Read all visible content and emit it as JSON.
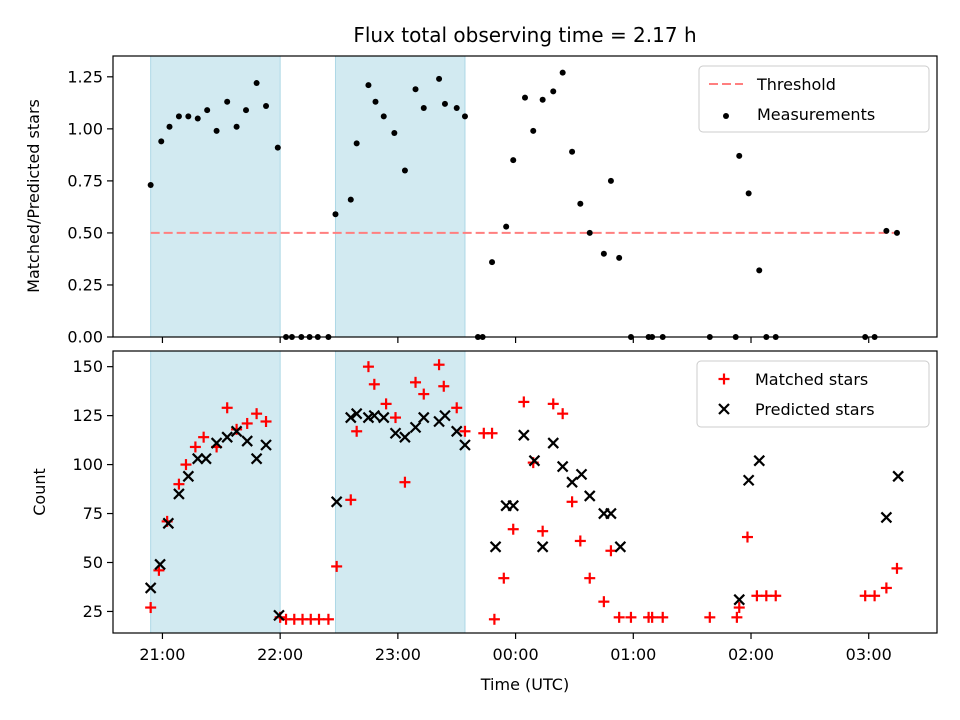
{
  "chart_data": [
    {
      "panel": "top",
      "type": "scatter",
      "title": "Flux total observing time = 2.17 h",
      "xlabel": "",
      "ylabel": "Matched/Predicted stars",
      "ylim": [
        0,
        1.35
      ],
      "yticks": [
        0,
        0.25,
        0.5,
        0.75,
        1.0,
        1.25
      ],
      "ytick_labels": [
        "0.00",
        "0.25",
        "0.50",
        "0.75",
        "1.00",
        "1.25"
      ],
      "xlim_hours": [
        20.58,
        27.58
      ],
      "xticks_hours": [
        21,
        22,
        23,
        24,
        25,
        26,
        27
      ],
      "xtick_labels": [
        "21:00",
        "22:00",
        "23:00",
        "00:00",
        "01:00",
        "02:00",
        "03:00"
      ],
      "shaded_intervals_hours": [
        [
          20.9,
          22.0
        ],
        [
          22.47,
          23.57
        ]
      ],
      "shade_color": "#add8e6",
      "threshold": 0.5,
      "threshold_color": "#ff7f7f",
      "legend": [
        "Threshold",
        "Measurements"
      ],
      "legend_position": "top-right",
      "series": [
        {
          "name": "Measurements",
          "color": "#000000",
          "points": [
            [
              20.9,
              0.73
            ],
            [
              20.99,
              0.94
            ],
            [
              21.06,
              1.01
            ],
            [
              21.14,
              1.06
            ],
            [
              21.22,
              1.06
            ],
            [
              21.3,
              1.05
            ],
            [
              21.38,
              1.09
            ],
            [
              21.46,
              0.99
            ],
            [
              21.55,
              1.13
            ],
            [
              21.63,
              1.01
            ],
            [
              21.71,
              1.09
            ],
            [
              21.8,
              1.22
            ],
            [
              21.88,
              1.11
            ],
            [
              21.98,
              0.91
            ],
            [
              22.05,
              0.0
            ],
            [
              22.1,
              0.0
            ],
            [
              22.18,
              0.0
            ],
            [
              22.25,
              0.0
            ],
            [
              22.32,
              0.0
            ],
            [
              22.41,
              0.0
            ],
            [
              22.47,
              0.59
            ],
            [
              22.6,
              0.66
            ],
            [
              22.65,
              0.93
            ],
            [
              22.75,
              1.21
            ],
            [
              22.81,
              1.13
            ],
            [
              22.88,
              1.06
            ],
            [
              22.97,
              0.98
            ],
            [
              23.06,
              0.8
            ],
            [
              23.15,
              1.19
            ],
            [
              23.22,
              1.1
            ],
            [
              23.35,
              1.24
            ],
            [
              23.4,
              1.12
            ],
            [
              23.5,
              1.1
            ],
            [
              23.57,
              1.06
            ],
            [
              23.68,
              0.0
            ],
            [
              23.72,
              0.0
            ],
            [
              23.8,
              0.36
            ],
            [
              23.92,
              0.53
            ],
            [
              23.98,
              0.85
            ],
            [
              24.08,
              1.15
            ],
            [
              24.15,
              0.99
            ],
            [
              24.23,
              1.14
            ],
            [
              24.32,
              1.18
            ],
            [
              24.4,
              1.27
            ],
            [
              24.48,
              0.89
            ],
            [
              24.55,
              0.64
            ],
            [
              24.63,
              0.5
            ],
            [
              24.75,
              0.4
            ],
            [
              24.81,
              0.75
            ],
            [
              24.88,
              0.38
            ],
            [
              24.98,
              0.0
            ],
            [
              25.13,
              0.0
            ],
            [
              25.16,
              0.0
            ],
            [
              25.25,
              0.0
            ],
            [
              25.65,
              0.0
            ],
            [
              25.87,
              0.0
            ],
            [
              25.9,
              0.87
            ],
            [
              25.98,
              0.69
            ],
            [
              26.07,
              0.32
            ],
            [
              26.13,
              0.0
            ],
            [
              26.21,
              0.0
            ],
            [
              26.97,
              0.0
            ],
            [
              27.05,
              0.0
            ],
            [
              27.15,
              0.51
            ],
            [
              27.24,
              0.5
            ]
          ]
        }
      ]
    },
    {
      "panel": "bottom",
      "type": "scatter",
      "title": "",
      "xlabel": "Time (UTC)",
      "ylabel": "Count",
      "ylim": [
        14,
        158
      ],
      "yticks": [
        25,
        50,
        75,
        100,
        125,
        150
      ],
      "ytick_labels": [
        "25",
        "50",
        "75",
        "100",
        "125",
        "150"
      ],
      "xlim_hours": [
        20.58,
        27.58
      ],
      "xticks_hours": [
        21,
        22,
        23,
        24,
        25,
        26,
        27
      ],
      "xtick_labels": [
        "21:00",
        "22:00",
        "23:00",
        "00:00",
        "01:00",
        "02:00",
        "03:00"
      ],
      "shaded_intervals_hours": [
        [
          20.9,
          22.0
        ],
        [
          22.47,
          23.57
        ]
      ],
      "shade_color": "#add8e6",
      "legend": [
        "Matched stars",
        "Predicted stars"
      ],
      "legend_position": "top-right",
      "series": [
        {
          "name": "Matched stars",
          "marker": "+",
          "color": "#ff0000",
          "points": [
            [
              20.9,
              27
            ],
            [
              20.97,
              46
            ],
            [
              21.04,
              71
            ],
            [
              21.14,
              90
            ],
            [
              21.2,
              100
            ],
            [
              21.28,
              109
            ],
            [
              21.35,
              114
            ],
            [
              21.46,
              109
            ],
            [
              21.55,
              129
            ],
            [
              21.63,
              118
            ],
            [
              21.72,
              121
            ],
            [
              21.8,
              126
            ],
            [
              21.88,
              122
            ],
            [
              22.0,
              22
            ],
            [
              22.05,
              21
            ],
            [
              22.12,
              21
            ],
            [
              22.19,
              21
            ],
            [
              22.26,
              21
            ],
            [
              22.33,
              21
            ],
            [
              22.41,
              21
            ],
            [
              22.48,
              48
            ],
            [
              22.6,
              82
            ],
            [
              22.65,
              117
            ],
            [
              22.75,
              150
            ],
            [
              22.8,
              141
            ],
            [
              22.9,
              131
            ],
            [
              22.98,
              124
            ],
            [
              23.06,
              91
            ],
            [
              23.15,
              142
            ],
            [
              23.22,
              136
            ],
            [
              23.35,
              151
            ],
            [
              23.39,
              140
            ],
            [
              23.5,
              129
            ],
            [
              23.57,
              117
            ],
            [
              23.73,
              116
            ],
            [
              23.8,
              116
            ],
            [
              23.82,
              21
            ],
            [
              23.9,
              42
            ],
            [
              23.98,
              67
            ],
            [
              24.07,
              132
            ],
            [
              24.15,
              101
            ],
            [
              24.23,
              66
            ],
            [
              24.32,
              131
            ],
            [
              24.4,
              126
            ],
            [
              24.48,
              81
            ],
            [
              24.55,
              61
            ],
            [
              24.63,
              42
            ],
            [
              24.75,
              30
            ],
            [
              24.81,
              56
            ],
            [
              24.88,
              22
            ],
            [
              24.98,
              22
            ],
            [
              25.13,
              22
            ],
            [
              25.16,
              22
            ],
            [
              25.25,
              22
            ],
            [
              25.65,
              22
            ],
            [
              25.88,
              22
            ],
            [
              25.9,
              27
            ],
            [
              25.97,
              63
            ],
            [
              26.05,
              33
            ],
            [
              26.13,
              33
            ],
            [
              26.21,
              33
            ],
            [
              26.97,
              33
            ],
            [
              27.05,
              33
            ],
            [
              27.15,
              37
            ],
            [
              27.24,
              47
            ]
          ]
        },
        {
          "name": "Predicted stars",
          "marker": "x",
          "color": "#000000",
          "points": [
            [
              20.9,
              37
            ],
            [
              20.98,
              49
            ],
            [
              21.05,
              70
            ],
            [
              21.14,
              85
            ],
            [
              21.22,
              94
            ],
            [
              21.3,
              103
            ],
            [
              21.37,
              103
            ],
            [
              21.46,
              111
            ],
            [
              21.55,
              114
            ],
            [
              21.63,
              117
            ],
            [
              21.72,
              112
            ],
            [
              21.8,
              103
            ],
            [
              21.88,
              110
            ],
            [
              21.99,
              23
            ],
            [
              22.48,
              81
            ],
            [
              22.6,
              124
            ],
            [
              22.65,
              126
            ],
            [
              22.75,
              124
            ],
            [
              22.8,
              125
            ],
            [
              22.88,
              124
            ],
            [
              22.98,
              116
            ],
            [
              23.06,
              114
            ],
            [
              23.15,
              119
            ],
            [
              23.22,
              124
            ],
            [
              23.35,
              122
            ],
            [
              23.4,
              125
            ],
            [
              23.5,
              117
            ],
            [
              23.57,
              110
            ],
            [
              23.83,
              58
            ],
            [
              23.92,
              79
            ],
            [
              23.98,
              79
            ],
            [
              24.07,
              115
            ],
            [
              24.16,
              102
            ],
            [
              24.23,
              58
            ],
            [
              24.32,
              111
            ],
            [
              24.4,
              99
            ],
            [
              24.48,
              91
            ],
            [
              24.56,
              95
            ],
            [
              24.63,
              84
            ],
            [
              24.75,
              75
            ],
            [
              24.81,
              75
            ],
            [
              24.89,
              58
            ],
            [
              25.9,
              31
            ],
            [
              25.98,
              92
            ],
            [
              26.07,
              102
            ],
            [
              27.15,
              73
            ],
            [
              27.25,
              94
            ]
          ]
        }
      ]
    }
  ]
}
